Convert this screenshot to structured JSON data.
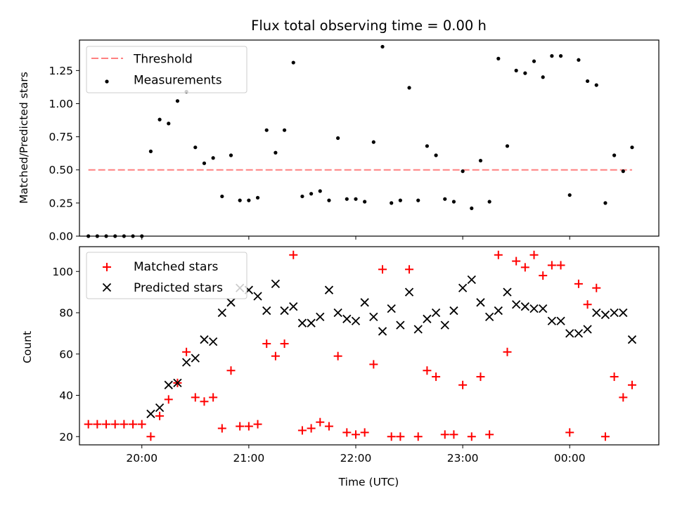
{
  "chart_data": [
    {
      "type": "scatter",
      "title": "Flux total observing time = 0.00 h",
      "xlabel": "",
      "ylabel": "Matched/Predicted stars",
      "xlim": [
        "19:25",
        "00:50"
      ],
      "ylim": [
        0,
        1.48
      ],
      "yticks": [
        0.0,
        0.25,
        0.5,
        0.75,
        1.0,
        1.25
      ],
      "ytick_labels": [
        "0.00",
        "0.25",
        "0.50",
        "0.75",
        "1.00",
        "1.25"
      ],
      "xticks": [
        "20:00",
        "21:00",
        "22:00",
        "23:00",
        "00:00"
      ],
      "show_xtick_labels": false,
      "grid": false,
      "legend_position": "top-left",
      "lines": [
        {
          "name": "Threshold",
          "color": "#ff8080",
          "dashed": true,
          "x": [
            "19:30",
            "00:35"
          ],
          "y": [
            0.5,
            0.5
          ]
        }
      ],
      "series": [
        {
          "name": "Measurements",
          "color": "#000000",
          "marker": "dot",
          "x": [
            "19:30",
            "19:35",
            "19:40",
            "19:45",
            "19:50",
            "19:55",
            "20:00",
            "20:05",
            "20:10",
            "20:15",
            "20:20",
            "20:25",
            "20:30",
            "20:35",
            "20:40",
            "20:45",
            "20:50",
            "20:55",
            "21:00",
            "21:05",
            "21:10",
            "21:15",
            "21:20",
            "21:25",
            "21:30",
            "21:35",
            "21:40",
            "21:45",
            "21:50",
            "21:55",
            "22:00",
            "22:05",
            "22:10",
            "22:15",
            "22:20",
            "22:25",
            "22:30",
            "22:35",
            "22:40",
            "22:45",
            "22:50",
            "22:55",
            "23:00",
            "23:05",
            "23:10",
            "23:15",
            "23:20",
            "23:25",
            "23:30",
            "23:35",
            "23:40",
            "23:45",
            "23:50",
            "23:55",
            "00:00",
            "00:05",
            "00:10",
            "00:15",
            "00:20",
            "00:25",
            "00:30",
            "00:35"
          ],
          "y": [
            0.0,
            0.0,
            0.0,
            0.0,
            0.0,
            0.0,
            0.0,
            0.64,
            0.88,
            0.85,
            1.02,
            1.09,
            0.67,
            0.55,
            0.59,
            0.3,
            0.61,
            0.27,
            0.27,
            0.29,
            0.8,
            0.63,
            0.8,
            1.31,
            0.3,
            0.32,
            0.34,
            0.27,
            0.74,
            0.28,
            0.28,
            0.26,
            0.71,
            1.43,
            0.25,
            0.27,
            1.12,
            0.27,
            0.68,
            0.61,
            0.28,
            0.26,
            0.49,
            0.21,
            0.57,
            0.26,
            1.34,
            0.68,
            1.25,
            1.23,
            1.32,
            1.2,
            1.36,
            1.36,
            0.31,
            1.33,
            1.17,
            1.14,
            0.25,
            0.61,
            0.49,
            0.67
          ]
        }
      ]
    },
    {
      "type": "scatter",
      "title": "",
      "xlabel": "Time (UTC)",
      "ylabel": "Count",
      "xlim": [
        "19:25",
        "00:50"
      ],
      "ylim": [
        16,
        112
      ],
      "yticks": [
        20,
        40,
        60,
        80,
        100
      ],
      "ytick_labels": [
        "20",
        "40",
        "60",
        "80",
        "100"
      ],
      "xticks": [
        "20:00",
        "21:00",
        "22:00",
        "23:00",
        "00:00"
      ],
      "xtick_labels": [
        "20:00",
        "21:00",
        "22:00",
        "23:00",
        "00:00"
      ],
      "grid": false,
      "legend_position": "top-left",
      "series": [
        {
          "name": "Matched stars",
          "color": "#ff0000",
          "marker": "plus",
          "x": [
            "19:30",
            "19:35",
            "19:40",
            "19:45",
            "19:50",
            "19:55",
            "20:00",
            "20:05",
            "20:10",
            "20:15",
            "20:20",
            "20:25",
            "20:30",
            "20:35",
            "20:40",
            "20:45",
            "20:50",
            "20:55",
            "21:00",
            "21:05",
            "21:10",
            "21:15",
            "21:20",
            "21:25",
            "21:30",
            "21:35",
            "21:40",
            "21:45",
            "21:50",
            "21:55",
            "22:00",
            "22:05",
            "22:10",
            "22:15",
            "22:20",
            "22:25",
            "22:30",
            "22:35",
            "22:40",
            "22:45",
            "22:50",
            "22:55",
            "23:00",
            "23:05",
            "23:10",
            "23:15",
            "23:20",
            "23:25",
            "23:30",
            "23:35",
            "23:40",
            "23:45",
            "23:50",
            "23:55",
            "00:00",
            "00:05",
            "00:10",
            "00:15",
            "00:20",
            "00:25",
            "00:30",
            "00:35"
          ],
          "y": [
            26,
            26,
            26,
            26,
            26,
            26,
            26,
            20,
            30,
            38,
            46,
            61,
            39,
            37,
            39,
            24,
            52,
            25,
            25,
            26,
            65,
            59,
            65,
            108,
            23,
            24,
            27,
            25,
            59,
            22,
            21,
            22,
            55,
            101,
            20,
            20,
            101,
            20,
            52,
            49,
            21,
            21,
            45,
            20,
            49,
            21,
            108,
            61,
            105,
            102,
            108,
            98,
            103,
            103,
            22,
            94,
            84,
            92,
            20,
            49,
            39,
            45
          ]
        },
        {
          "name": "Predicted stars",
          "color": "#000000",
          "marker": "x",
          "x": [
            "20:05",
            "20:10",
            "20:15",
            "20:20",
            "20:25",
            "20:30",
            "20:35",
            "20:40",
            "20:45",
            "20:50",
            "20:55",
            "21:00",
            "21:05",
            "21:10",
            "21:15",
            "21:20",
            "21:25",
            "21:30",
            "21:35",
            "21:40",
            "21:45",
            "21:50",
            "21:55",
            "22:00",
            "22:05",
            "22:10",
            "22:15",
            "22:20",
            "22:25",
            "22:30",
            "22:35",
            "22:40",
            "22:45",
            "22:50",
            "22:55",
            "23:00",
            "23:05",
            "23:10",
            "23:15",
            "23:20",
            "23:25",
            "23:30",
            "23:35",
            "23:40",
            "23:45",
            "23:50",
            "23:55",
            "00:00",
            "00:05",
            "00:10",
            "00:15",
            "00:20",
            "00:25",
            "00:30",
            "00:35"
          ],
          "y": [
            31,
            34,
            45,
            46,
            56,
            58,
            67,
            66,
            80,
            85,
            92,
            91,
            88,
            81,
            94,
            81,
            83,
            75,
            75,
            78,
            91,
            80,
            77,
            76,
            85,
            78,
            71,
            82,
            74,
            90,
            72,
            77,
            80,
            74,
            81,
            92,
            96,
            85,
            78,
            81,
            90,
            84,
            83,
            82,
            82,
            76,
            76,
            70,
            70,
            72,
            80,
            79,
            80,
            80,
            67
          ]
        }
      ]
    }
  ]
}
